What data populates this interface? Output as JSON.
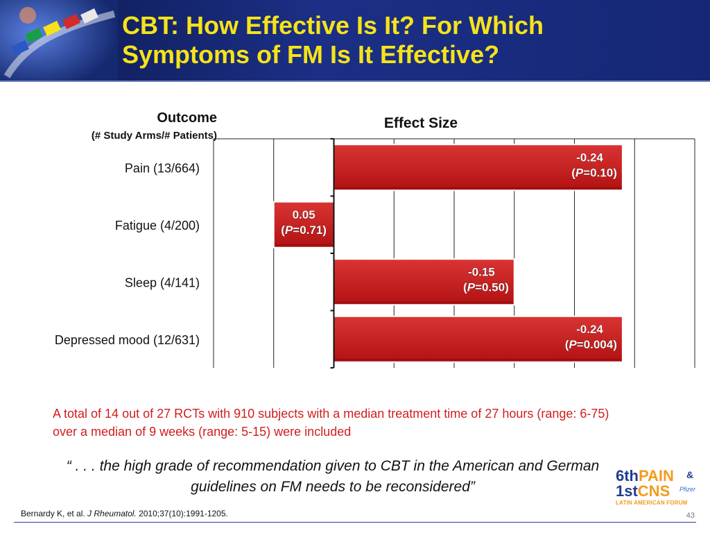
{
  "slide": {
    "title_line1": "CBT: How Effective Is It? For Which",
    "title_line2": "Symptoms of FM Is It Effective?",
    "note_text": "A total of 14 out of 27 RCTs with 910 subjects with a median treatment time of 27 hours (range: 6-75) over a median of 9 weeks (range: 5-15) were included",
    "quote_text": "“ . . . the high grade of recommendation given to CBT in the American and German guidelines on FM needs to be reconsidered”",
    "citation_prefix": "Bernardy K, et al. ",
    "citation_journal": "J Rheumatol.",
    "citation_suffix": " 2010;37(10):1991-1205.",
    "page_number": "43"
  },
  "logo": {
    "line1_prefix": "6th",
    "line1_highlight": "PAIN",
    "ampersand": "&",
    "line2_prefix": "1st",
    "line2_highlight": "CNS",
    "sponsor": "Pfizer",
    "line3": "LATIN AMERICAN FORUM"
  },
  "colors": {
    "banner": "#1b2f86",
    "title": "#f6e319",
    "bar_fill": "#cc1a1a",
    "note_text": "#d11d1d"
  },
  "chart_data": {
    "type": "bar",
    "orientation": "horizontal",
    "row_header": "Outcome",
    "row_subheader": "(# Study Arms/# Patients)",
    "value_header": "Effect Size",
    "categories": [
      "Pain (13/664)",
      "Fatigue (4/200)",
      "Sleep (4/141)",
      "Depressed mood (12/631)"
    ],
    "values": [
      -0.24,
      0.05,
      -0.15,
      -0.24
    ],
    "value_labels": [
      "-0.24",
      "0.05",
      "-0.15",
      "-0.24"
    ],
    "p_values": [
      "0.10",
      "0.71",
      "0.50",
      "0.004"
    ],
    "p_symbol": "P",
    "xlim": [
      0.1,
      -0.3
    ],
    "x_reversed": true,
    "grid": true
  }
}
